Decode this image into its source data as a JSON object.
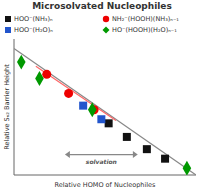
{
  "chart_data": {
    "type": "scatter",
    "title": "Microsolvated Nucleophiles",
    "xlabel": "Relative HOMO of Nucleophiles",
    "ylabel": "Relative Sₙ₂ Barrier Height",
    "xlim": [
      0.0,
      1.0
    ],
    "ylim": [
      0.0,
      1.0
    ],
    "tick_labels": false,
    "legend": "top",
    "series": [
      {
        "name": "HOO⁻(NH₃)ₙ",
        "color": "#111111",
        "marker": "square",
        "x": [
          0.52,
          0.62,
          0.73,
          0.83
        ],
        "values": [
          0.38,
          0.28,
          0.19,
          0.12
        ]
      },
      {
        "name": "NH₂⁻(HOOH)(NH₃)ₙ₋₁",
        "color": "#EE0000",
        "marker": "circle",
        "x": [
          0.18,
          0.3,
          0.44
        ],
        "values": [
          0.74,
          0.6,
          0.48
        ]
      },
      {
        "name": "HOO⁻(H₂O)ₙ",
        "color": "#2255CC",
        "marker": "square",
        "x": [
          0.38,
          0.48
        ],
        "values": [
          0.51,
          0.41
        ]
      },
      {
        "name": "HO⁻(HOOH)(H₂O)ₙ₋₁",
        "color": "#009900",
        "marker": "diamond",
        "x": [
          0.04,
          0.14,
          0.43,
          0.95
        ],
        "values": [
          0.83,
          0.71,
          0.48,
          0.05
        ]
      }
    ],
    "trendlines": [
      {
        "x": [
          0.0,
          1.0
        ],
        "values": [
          0.93,
          0.0
        ],
        "color": "#888888"
      },
      {
        "x": [
          0.12,
          0.56
        ],
        "values": [
          0.8,
          0.4
        ],
        "color": "#FF6666"
      }
    ],
    "annotations": [
      {
        "text": "solvation",
        "x": [
          0.68,
          0.28
        ],
        "y": 0.15,
        "color": "#888888"
      }
    ]
  }
}
